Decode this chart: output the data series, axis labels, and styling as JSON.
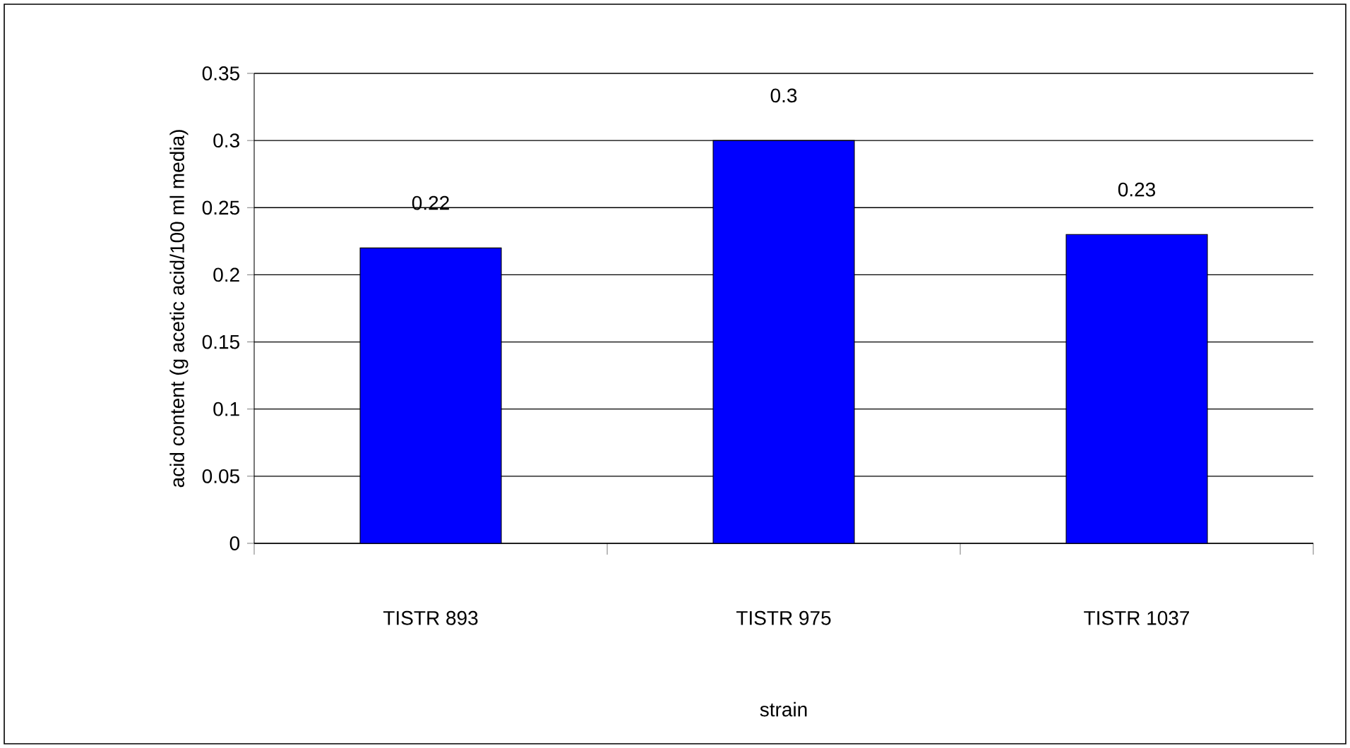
{
  "chart_data": {
    "type": "bar",
    "xlabel": "strain",
    "ylabel": "acid content (g acetic acid/100 ml media)",
    "categories": [
      "TISTR 893",
      "TISTR 975",
      "TISTR 1037"
    ],
    "values": [
      0.22,
      0.3,
      0.23
    ],
    "color": "#0000ff",
    "ylim": [
      0,
      0.35
    ],
    "yticks": [
      0,
      0.05,
      0.1,
      0.15,
      0.2,
      0.25,
      0.3,
      0.35
    ],
    "grid": "y",
    "data_labels": true
  }
}
